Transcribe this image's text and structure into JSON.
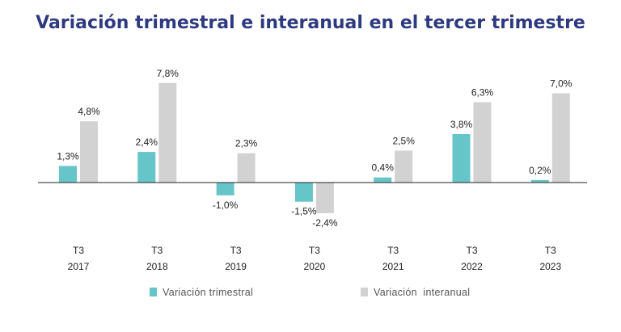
{
  "chart_data": {
    "type": "bar",
    "title": "Variación trimestral e interanual en el tercer trimestre",
    "categories": [
      [
        "T3",
        "2017"
      ],
      [
        "T3",
        "2018"
      ],
      [
        "T3",
        "2019"
      ],
      [
        "T3",
        "2020"
      ],
      [
        "T3",
        "2021"
      ],
      [
        "T3",
        "2022"
      ],
      [
        "T3",
        "2023"
      ]
    ],
    "series": [
      {
        "name": "Variación trimestral",
        "color": "#66c5c9",
        "values": [
          1.3,
          2.4,
          -1.0,
          -1.5,
          0.4,
          3.8,
          0.2
        ],
        "labels": [
          "1,3%",
          "2,4%",
          "-1,0%",
          "-1,5%",
          "0,4%",
          "3,8%",
          "0,2%"
        ]
      },
      {
        "name": "Variación  interanual",
        "color": "#d2d2d2",
        "values": [
          4.8,
          7.8,
          2.3,
          -2.4,
          2.5,
          6.3,
          7.0
        ],
        "labels": [
          "4,8%",
          "7,8%",
          "2,3%",
          "-2,4%",
          "2,5%",
          "6,3%",
          "7,0%"
        ]
      }
    ],
    "legend_position": "bottom",
    "grid": false
  }
}
